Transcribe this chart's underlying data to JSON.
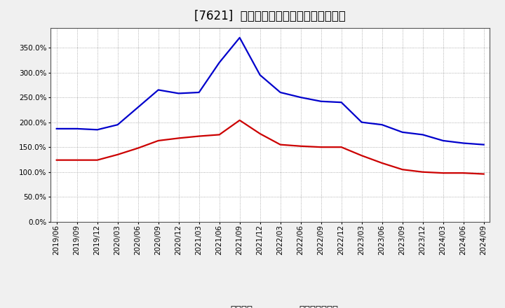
{
  "title": "[7621]  固定比率、固定長期適合率の推移",
  "x_labels": [
    "2019/06",
    "2019/09",
    "2019/12",
    "2020/03",
    "2020/06",
    "2020/09",
    "2020/12",
    "2021/03",
    "2021/06",
    "2021/09",
    "2021/12",
    "2022/03",
    "2022/06",
    "2022/09",
    "2022/12",
    "2023/03",
    "2023/06",
    "2023/09",
    "2023/12",
    "2024/03",
    "2024/06",
    "2024/09"
  ],
  "fixed_ratio": [
    187,
    187,
    185,
    195,
    230,
    265,
    258,
    260,
    320,
    370,
    295,
    260,
    250,
    242,
    240,
    200,
    195,
    180,
    175,
    163,
    158,
    155
  ],
  "fixed_long_ratio": [
    124,
    124,
    124,
    135,
    148,
    163,
    168,
    172,
    175,
    204,
    177,
    155,
    152,
    150,
    150,
    133,
    118,
    105,
    100,
    98,
    98,
    96
  ],
  "blue_color": "#0000cc",
  "red_color": "#cc0000",
  "background_color": "#f0f0f0",
  "plot_bg_color": "#ffffff",
  "grid_color": "#999999",
  "ylim": [
    0,
    390
  ],
  "yticks": [
    0,
    50,
    100,
    150,
    200,
    250,
    300,
    350
  ],
  "legend_fixed": "固定比率",
  "legend_fixed_long": "固定長期適合率",
  "title_fontsize": 12,
  "label_fontsize": 7.5,
  "legend_fontsize": 9.5
}
